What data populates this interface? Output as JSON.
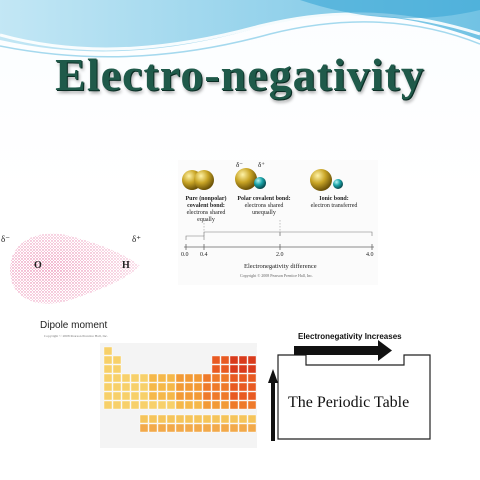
{
  "slide": {
    "title": "Electro-negativity",
    "accent_color": "#1f5a4a"
  },
  "bond_diagram": {
    "delta_minus": "δ⁻",
    "delta_plus": "δ⁺",
    "bond_types": [
      {
        "name": "Pure (nonpolar) covalent bond:",
        "desc": "electrons shared equally"
      },
      {
        "name": "Polar covalent bond:",
        "desc": "electrons shared unequally"
      },
      {
        "name": "Ionic bond:",
        "desc": "electron transferred"
      }
    ],
    "axis_ticks": [
      "0.0",
      "0.4",
      "2.0",
      "4.0"
    ],
    "axis_label": "Electronegativity difference",
    "copyright": "Copyright © 2008 Pearson Prentice Hall, Inc."
  },
  "dipole": {
    "delta_minus": "δ⁻",
    "delta_plus": "δ⁺",
    "atom_left": "O",
    "atom_right": "H",
    "caption": "Dipole moment",
    "copyright": "Copyright © 2008 Pearson Prentice Hall, Inc."
  },
  "periodic_trend": {
    "arrow_label": "Electronegativity Increases",
    "box_label": "The Periodic Table"
  }
}
